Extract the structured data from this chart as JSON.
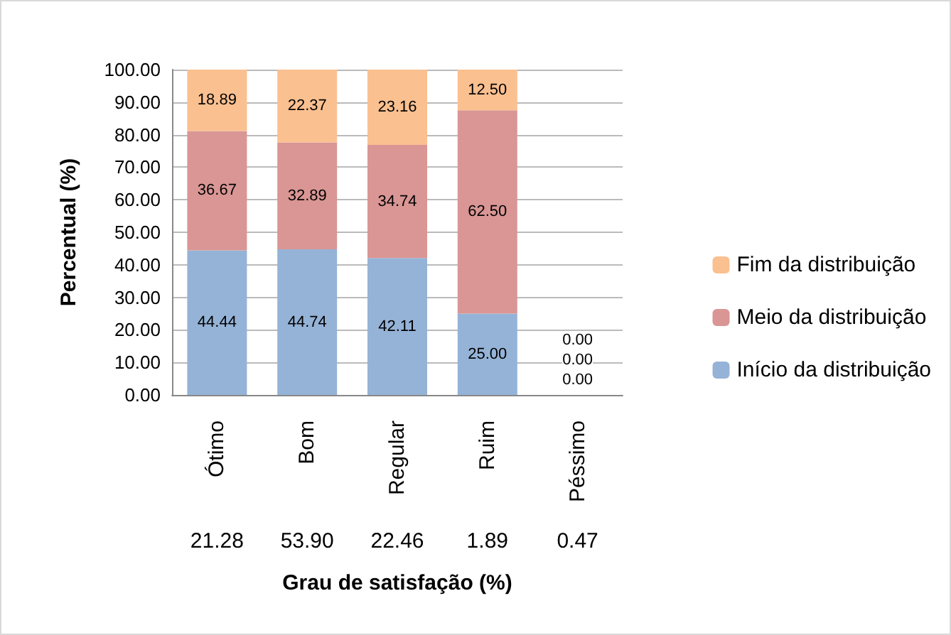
{
  "chart_data": {
    "type": "bar",
    "stacked": true,
    "xlabel": "Grau de satisfação (%)",
    "ylabel": "Percentual (%)",
    "categories": [
      "Ótimo",
      "Bom",
      "Regular",
      "Ruim",
      "Péssimo"
    ],
    "series": [
      {
        "name": "Início da distribuição",
        "color": "#95b3d7",
        "values": [
          44.44,
          44.74,
          42.11,
          25.0,
          0
        ],
        "value_labels": [
          "44.44",
          "44.74",
          "42.11",
          "25.00",
          "0.00"
        ]
      },
      {
        "name": "Meio da distribuição",
        "color": "#d99694",
        "values": [
          36.67,
          32.89,
          34.74,
          62.5,
          0
        ],
        "value_labels": [
          "36.67",
          "32.89",
          "34.74",
          "62.50",
          "0.00"
        ]
      },
      {
        "name": "Fim da distribuição",
        "color": "#fac090",
        "values": [
          18.89,
          22.37,
          23.16,
          12.5,
          0
        ],
        "value_labels": [
          "18.89",
          "22.37",
          "23.16",
          "12.50",
          "0.00"
        ]
      }
    ],
    "annotations": [
      "21.28",
      "53.90",
      "22.46",
      "1.89",
      "0.47"
    ],
    "ylim": [
      0,
      100
    ],
    "yticks": [
      {
        "value": 0,
        "label": "0.00"
      },
      {
        "value": 10,
        "label": "10.00"
      },
      {
        "value": 20,
        "label": "20.00"
      },
      {
        "value": 30,
        "label": "30.00"
      },
      {
        "value": 40,
        "label": "40.00"
      },
      {
        "value": 50,
        "label": "50.00"
      },
      {
        "value": 60,
        "label": "60.00"
      },
      {
        "value": 70,
        "label": "70.00"
      },
      {
        "value": 80,
        "label": "80.00"
      },
      {
        "value": 90,
        "label": "90.00"
      },
      {
        "value": 100,
        "label": "100.00"
      }
    ],
    "grid": "y",
    "legend": "right"
  }
}
